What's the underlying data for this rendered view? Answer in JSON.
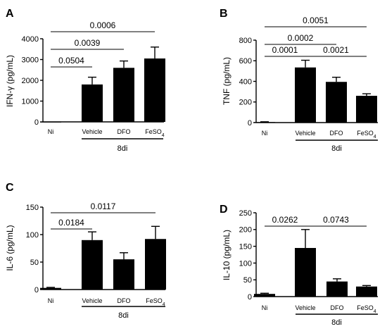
{
  "chart_data": [
    {
      "type": "bar",
      "panel_label": "A",
      "ylabel": "IFN-γ (pg/mL)",
      "ylim": [
        0,
        4000
      ],
      "yticks": [
        0,
        1000,
        2000,
        3000,
        4000
      ],
      "categories": [
        "Ni",
        "Vehicle",
        "DFO",
        "FeSO4"
      ],
      "category_labels": [
        {
          "main": "Ni",
          "sub": ""
        },
        {
          "main": "Vehicle",
          "sub": ""
        },
        {
          "main": "DFO",
          "sub": ""
        },
        {
          "main": "FeSO",
          "sub": "4"
        }
      ],
      "values": [
        0,
        1800,
        2600,
        3050
      ],
      "errors": [
        0,
        350,
        330,
        550
      ],
      "group_label": "8di",
      "group_span": [
        1,
        3
      ],
      "comparisons": [
        {
          "from": 0,
          "to": 1,
          "label": "0.0504",
          "level": 1
        },
        {
          "from": 0,
          "to": 2,
          "label": "0.0039",
          "level": 2
        },
        {
          "from": 0,
          "to": 3,
          "label": "0.0006",
          "level": 3
        }
      ]
    },
    {
      "type": "bar",
      "panel_label": "B",
      "ylabel": "TNF (pg/mL)",
      "ylim": [
        0,
        800
      ],
      "yticks": [
        0,
        200,
        400,
        600,
        800
      ],
      "categories": [
        "Ni",
        "Vehicle",
        "DFO",
        "FeSO4"
      ],
      "category_labels": [
        {
          "main": "Ni",
          "sub": ""
        },
        {
          "main": "Vehicle",
          "sub": ""
        },
        {
          "main": "DFO",
          "sub": ""
        },
        {
          "main": "FeSO",
          "sub": "4"
        }
      ],
      "values": [
        5,
        535,
        395,
        260
      ],
      "errors": [
        3,
        70,
        45,
        20
      ],
      "group_label": "8di",
      "group_span": [
        1,
        3
      ],
      "comparisons": [
        {
          "from": 0,
          "to": 1,
          "label": "0.0001",
          "level": 1
        },
        {
          "from": 1,
          "to": 3,
          "label": "0.0021",
          "level": 1
        },
        {
          "from": 0,
          "to": 2,
          "label": "0.0002",
          "level": 2
        },
        {
          "from": 0,
          "to": 3,
          "label": "0.0051",
          "level": 3
        }
      ]
    },
    {
      "type": "bar",
      "panel_label": "C",
      "ylabel": "IL-6 (pg/mL)",
      "ylim": [
        0,
        150
      ],
      "yticks": [
        0,
        50,
        100,
        150
      ],
      "categories": [
        "Ni",
        "Vehicle",
        "DFO",
        "FeSO4"
      ],
      "category_labels": [
        {
          "main": "Ni",
          "sub": ""
        },
        {
          "main": "Vehicle",
          "sub": ""
        },
        {
          "main": "DFO",
          "sub": ""
        },
        {
          "main": "FeSO",
          "sub": "4"
        }
      ],
      "values": [
        3,
        90,
        55,
        92
      ],
      "errors": [
        1,
        15,
        12,
        23
      ],
      "group_label": "8di",
      "group_span": [
        1,
        3
      ],
      "comparisons": [
        {
          "from": 0,
          "to": 1,
          "label": "0.0184",
          "level": 1
        },
        {
          "from": 0,
          "to": 3,
          "label": "0.0117",
          "level": 2
        }
      ]
    },
    {
      "type": "bar",
      "panel_label": "D",
      "ylabel": "IL-10 (pg/mL)",
      "ylim": [
        0,
        250
      ],
      "yticks": [
        0,
        50,
        100,
        150,
        200,
        250
      ],
      "categories": [
        "Ni",
        "Vehicle",
        "DFO",
        "FeSO4"
      ],
      "category_labels": [
        {
          "main": "Ni",
          "sub": ""
        },
        {
          "main": "Vehicle",
          "sub": ""
        },
        {
          "main": "DFO",
          "sub": ""
        },
        {
          "main": "FeSO",
          "sub": "4"
        }
      ],
      "values": [
        8,
        145,
        45,
        30
      ],
      "errors": [
        2,
        55,
        8,
        3
      ],
      "group_label": "8di",
      "group_span": [
        1,
        3
      ],
      "comparisons": [
        {
          "from": 0,
          "to": 1,
          "label": "0.0262",
          "level": 1
        },
        {
          "from": 1,
          "to": 3,
          "label": "0.0743",
          "level": 1
        }
      ]
    }
  ]
}
